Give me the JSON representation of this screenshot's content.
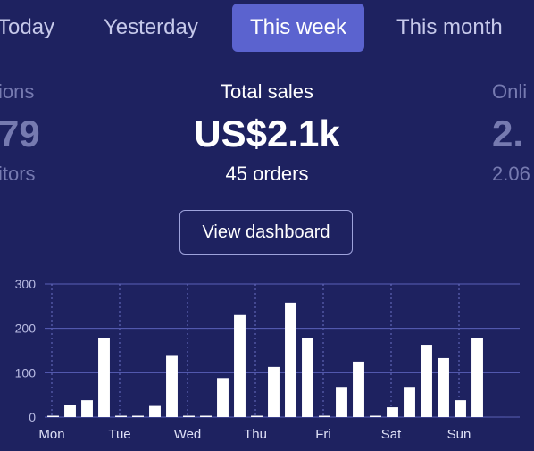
{
  "tabs": [
    {
      "label": "Today"
    },
    {
      "label": "Yesterday"
    },
    {
      "label": "This week",
      "active": true
    },
    {
      "label": "This month"
    }
  ],
  "stats": {
    "left": {
      "label": "ions",
      "value": "79",
      "sub": "itors"
    },
    "center": {
      "label": "Total sales",
      "value": "US$2.1k",
      "sub": "45 orders"
    },
    "right": {
      "label": "Onli",
      "value": "2.",
      "sub": "2.06"
    }
  },
  "view_dashboard_label": "View dashboard",
  "colors": {
    "background": "#1e2260",
    "accent": "#5b63cf",
    "bars": "#ffffff",
    "dim_text": "#767ab0"
  },
  "chart_data": {
    "type": "bar",
    "ylim": [
      0,
      300
    ],
    "yticks": [
      "0",
      "100",
      "200",
      "300"
    ],
    "ytick_values": [
      0,
      100,
      200,
      300
    ],
    "xtick_labels": [
      "Mon",
      "Tue",
      "Wed",
      "Thu",
      "Fri",
      "Sat",
      "Sun"
    ],
    "grid": true,
    "series": [
      {
        "values": [
          3,
          28,
          38,
          178,
          3,
          3,
          25,
          138,
          3,
          3,
          88,
          230,
          3,
          113,
          258,
          178,
          3,
          68,
          125,
          3,
          22,
          68,
          163,
          133,
          38,
          178,
          2,
          2
        ]
      }
    ]
  }
}
